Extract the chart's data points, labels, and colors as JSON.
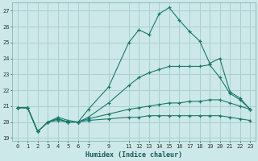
{
  "xlabel": "Humidex (Indice chaleur)",
  "ylabel": "",
  "bg_color": "#cce8e8",
  "grid_color": "#aacfcf",
  "line_color": "#1a7a6a",
  "xlim": [
    -0.5,
    23.5
  ],
  "ylim": [
    18.8,
    27.5
  ],
  "yticks": [
    19,
    20,
    21,
    22,
    23,
    24,
    25,
    26,
    27
  ],
  "xticks": [
    0,
    1,
    2,
    3,
    4,
    5,
    6,
    7,
    9,
    11,
    12,
    13,
    14,
    15,
    16,
    17,
    18,
    19,
    20,
    21,
    22,
    23
  ],
  "series": [
    {
      "x": [
        0,
        1,
        2,
        3,
        4,
        5,
        6,
        7,
        9,
        11,
        12,
        13,
        14,
        15,
        16,
        17,
        18,
        19,
        20,
        21,
        22,
        23
      ],
      "y": [
        20.9,
        20.9,
        19.4,
        20.0,
        20.3,
        20.1,
        20.0,
        20.8,
        22.2,
        25.0,
        25.8,
        25.5,
        26.8,
        27.2,
        26.4,
        25.7,
        25.1,
        23.7,
        24.0,
        21.9,
        21.5,
        20.8
      ]
    },
    {
      "x": [
        0,
        1,
        2,
        3,
        4,
        5,
        6,
        7,
        9,
        11,
        12,
        13,
        14,
        15,
        16,
        17,
        18,
        19,
        20,
        21,
        22,
        23
      ],
      "y": [
        20.9,
        20.9,
        19.4,
        20.0,
        20.2,
        20.0,
        20.0,
        20.3,
        21.2,
        22.3,
        22.8,
        23.1,
        23.3,
        23.5,
        23.5,
        23.5,
        23.5,
        23.6,
        22.8,
        21.8,
        21.4,
        20.8
      ]
    },
    {
      "x": [
        0,
        1,
        2,
        3,
        4,
        5,
        6,
        7,
        9,
        11,
        12,
        13,
        14,
        15,
        16,
        17,
        18,
        19,
        20,
        21,
        22,
        23
      ],
      "y": [
        20.9,
        20.9,
        19.4,
        20.0,
        20.2,
        20.0,
        20.0,
        20.2,
        20.5,
        20.8,
        20.9,
        21.0,
        21.1,
        21.2,
        21.2,
        21.3,
        21.3,
        21.4,
        21.4,
        21.2,
        21.0,
        20.8
      ]
    },
    {
      "x": [
        0,
        1,
        2,
        3,
        4,
        5,
        6,
        7,
        9,
        11,
        12,
        13,
        14,
        15,
        16,
        17,
        18,
        19,
        20,
        21,
        22,
        23
      ],
      "y": [
        20.9,
        20.9,
        19.4,
        20.0,
        20.1,
        20.0,
        20.0,
        20.1,
        20.2,
        20.3,
        20.3,
        20.4,
        20.4,
        20.4,
        20.4,
        20.4,
        20.4,
        20.4,
        20.4,
        20.3,
        20.2,
        20.1
      ]
    }
  ]
}
